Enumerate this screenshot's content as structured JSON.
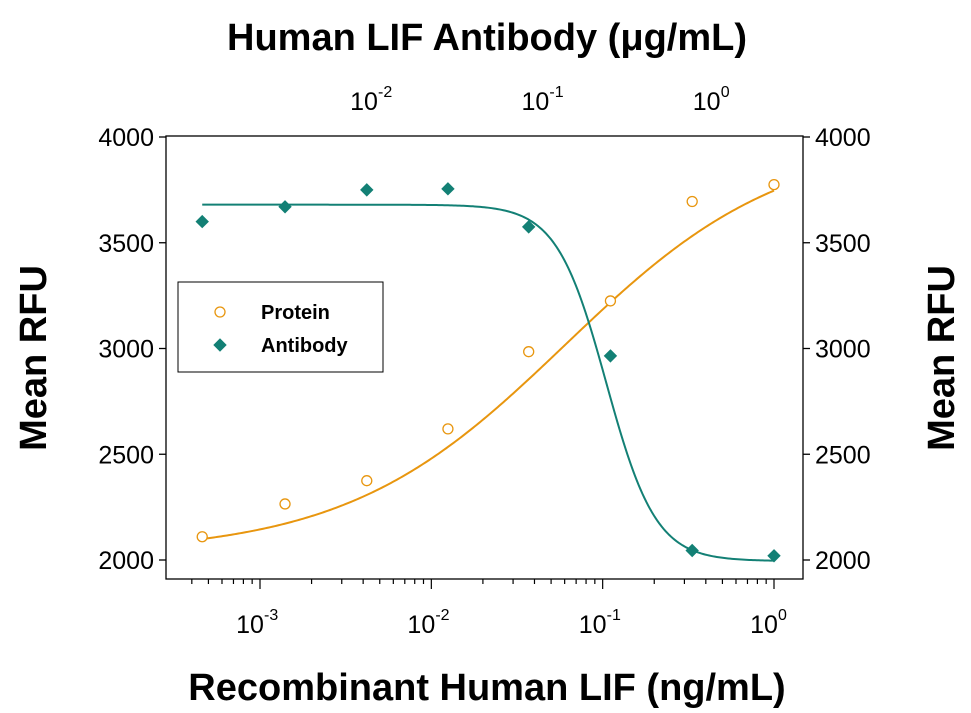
{
  "chart_data": {
    "type": "scatter",
    "title": "Human LIF Antibody (μg/mL)",
    "xlabel": "Recombinant Human LIF (ng/mL)",
    "ylabel": "Mean RFU",
    "ylabel_right": "Mean RFU",
    "x_scale": "log",
    "xlim": [
      0.0004,
      1.5
    ],
    "ylim": [
      1900,
      4000
    ],
    "y_ticks": [
      2000,
      2500,
      3000,
      3500,
      4000
    ],
    "y_tick_labels": [
      "2000",
      "2500",
      "3000",
      "3500",
      "4000"
    ],
    "x_ticks": [
      {
        "value": 0.001,
        "base": "10",
        "exp": "-3"
      },
      {
        "value": 0.01,
        "base": "10",
        "exp": "-2"
      },
      {
        "value": 0.1,
        "base": "10",
        "exp": "-1"
      },
      {
        "value": 1,
        "base": "10",
        "exp": "0"
      }
    ],
    "top_axis_ticks": [
      {
        "bottom_equivalent": 0.00463,
        "base": "10",
        "exp": "-2"
      },
      {
        "bottom_equivalent": 0.0463,
        "base": "10",
        "exp": "-1"
      },
      {
        "bottom_equivalent": 0.463,
        "base": "10",
        "exp": "0"
      }
    ],
    "legend_position": "left-center",
    "grid": false,
    "series": [
      {
        "name": "Protein",
        "marker": "open-circle",
        "color": "#E8960F",
        "x": [
          0.00046,
          0.0014,
          0.0042,
          0.0125,
          0.037,
          0.111,
          0.333,
          1.0
        ],
        "y": [
          2110,
          2265,
          2375,
          2620,
          2985,
          3225,
          3695,
          3775
        ]
      },
      {
        "name": "Antibody",
        "marker": "filled-diamond",
        "color": "#138075",
        "x": [
          0.00046,
          0.0014,
          0.0042,
          0.0125,
          0.037,
          0.111,
          0.333,
          1.0
        ],
        "y": [
          3600,
          3670,
          3750,
          3755,
          3575,
          2965,
          2045,
          2020
        ]
      }
    ]
  }
}
